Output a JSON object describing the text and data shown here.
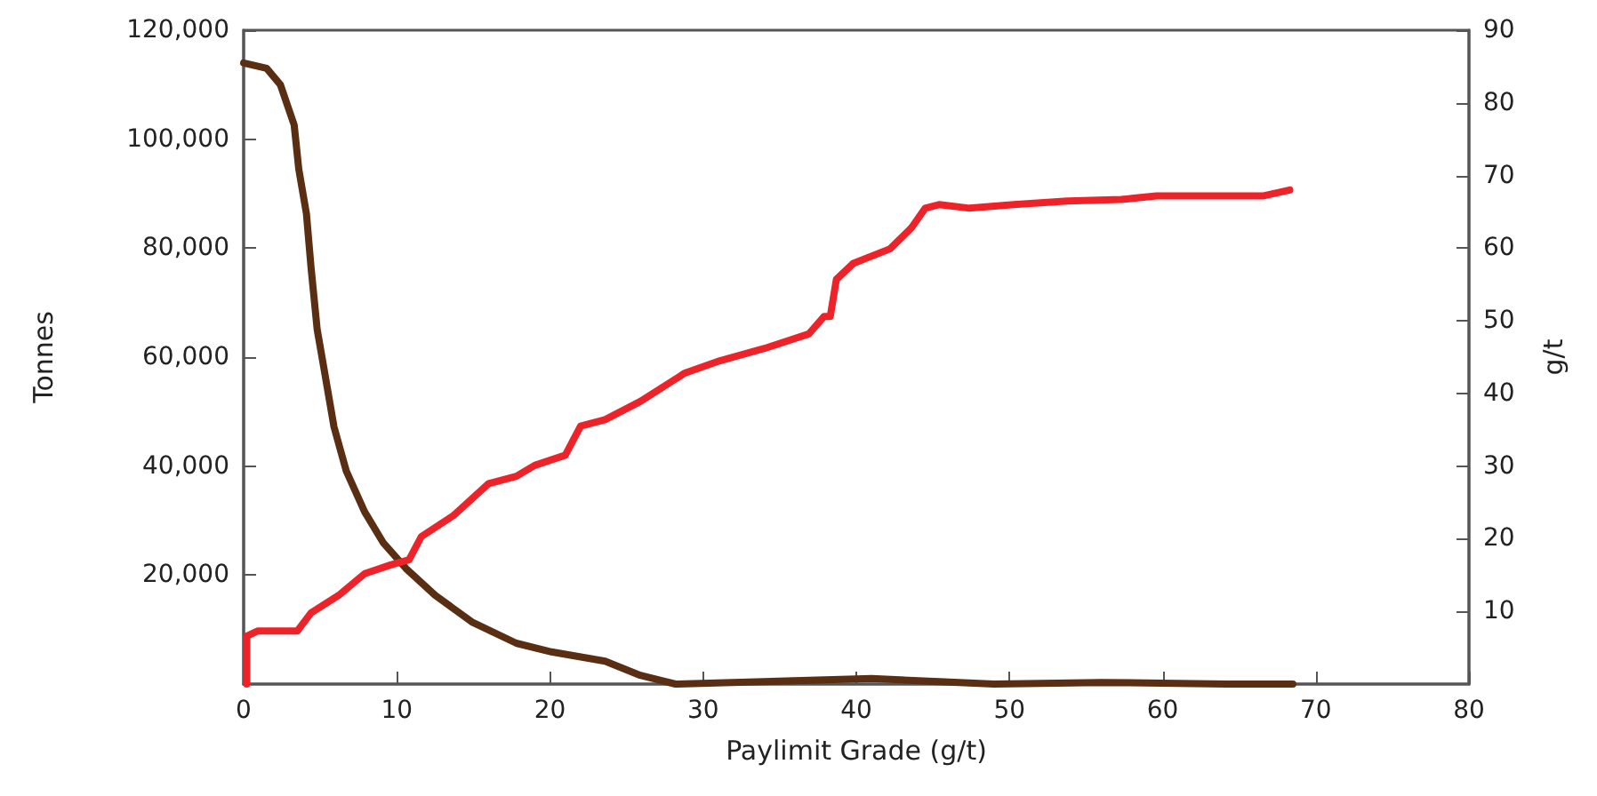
{
  "chart_data": {
    "type": "line",
    "xlabel": "Paylimit Grade (g/t)",
    "ylabel": "Tonnes",
    "y2label": "g/t",
    "xlim": [
      0,
      80
    ],
    "xticks": [
      0,
      10,
      20,
      30,
      40,
      50,
      60,
      70,
      80
    ],
    "ylim": [
      0,
      120000
    ],
    "yticks": [
      {
        "value": 20000,
        "label": "20,000"
      },
      {
        "value": 40000,
        "label": "40,000"
      },
      {
        "value": 60000,
        "label": "60,000"
      },
      {
        "value": 80000,
        "label": "80,000"
      },
      {
        "value": 100000,
        "label": "100,000"
      },
      {
        "value": 120000,
        "label": "120,000"
      }
    ],
    "y2lim": [
      0,
      90
    ],
    "y2ticks": [
      10,
      20,
      30,
      40,
      50,
      60,
      70,
      80,
      90
    ],
    "grid": false,
    "marker": "none",
    "line_style": "solid",
    "series": [
      {
        "color": "#5a2e12",
        "x": [
          0,
          1.5,
          2.4,
          3.3,
          3.6,
          4.1,
          4.4,
          4.8,
          5.3,
          5.9,
          6.7,
          7.9,
          9.1,
          10.6,
          12.5,
          14.9,
          17.8,
          20.1,
          23.6,
          25.9,
          28.2,
          41,
          49,
          56,
          64.2,
          68.5
        ],
        "values": [
          114000,
          113000,
          110000,
          102600,
          94500,
          86300,
          76500,
          65100,
          57000,
          47200,
          39100,
          31600,
          26000,
          21200,
          16300,
          11400,
          7500,
          5900,
          4200,
          1600,
          0,
          1000,
          0,
          300,
          0,
          0
        ]
      },
      {
        "color": "#ee2229",
        "axis": "y2",
        "x": [
          0.2,
          0.2,
          0.9,
          3.5,
          4.4,
          6.2,
          7.9,
          9.6,
          10.8,
          11.6,
          13.7,
          16,
          17.8,
          19,
          21,
          22,
          23.6,
          25.9,
          28.8,
          31.1,
          34,
          36.9,
          37.9,
          38.3,
          38.7,
          39.8,
          42.2,
          43.6,
          44.5,
          45.4,
          47.4,
          50.3,
          53.8,
          57.3,
          59.6,
          65.4,
          66.6,
          68.3
        ],
        "values": [
          0,
          6.6,
          7.3,
          7.3,
          9.8,
          12.2,
          15.2,
          16.4,
          17.1,
          20.3,
          23.2,
          27.6,
          28.6,
          30.1,
          31.5,
          35.5,
          36.4,
          38.9,
          42.8,
          44.5,
          46.2,
          48.2,
          50.6,
          50.6,
          55.7,
          57.9,
          59.9,
          62.8,
          65.5,
          66,
          65.5,
          66,
          66.5,
          66.7,
          67.2,
          67.2,
          67.2,
          68
        ]
      }
    ]
  }
}
